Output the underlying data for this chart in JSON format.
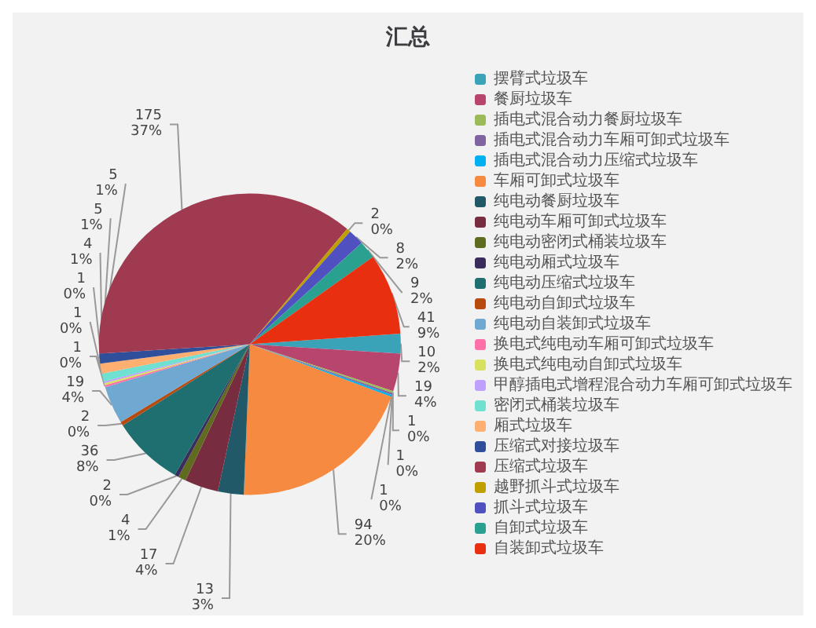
{
  "chart_data": {
    "type": "pie",
    "title": "汇总",
    "categories": [
      "摆臂式垃圾车",
      "餐厨垃圾车",
      "插电式混合动力餐厨垃圾车",
      "插电式混合动力车厢可卸式垃圾车",
      "插电式混合动力压缩式垃圾车",
      "车厢可卸式垃圾车",
      "纯电动餐厨垃圾车",
      "纯电动车厢可卸式垃圾车",
      "纯电动密闭式桶装垃圾车",
      "纯电动厢式垃圾车",
      "纯电动压缩式垃圾车",
      "纯电动自卸式垃圾车",
      "纯电动自装卸式垃圾车",
      "换电式纯电动车厢可卸式垃圾车",
      "换电式纯电动自卸式垃圾车",
      "甲醇插电式增程混合动力车厢可卸式垃圾车",
      "密闭式桶装垃圾车",
      "厢式垃圾车",
      "压缩式对接垃圾车",
      "压缩式垃圾车",
      "越野抓斗式垃圾车",
      "抓斗式垃圾车",
      "自卸式垃圾车",
      "自装卸式垃圾车"
    ],
    "values": [
      10,
      19,
      1,
      1,
      1,
      94,
      13,
      17,
      4,
      2,
      36,
      2,
      19,
      1,
      1,
      1,
      4,
      5,
      5,
      175,
      2,
      8,
      9,
      41
    ],
    "value_labels": [
      "10\n2%",
      "19\n4%",
      "1\n0%",
      "1\n0%",
      "1\n0%",
      "94\n20%",
      "13\n3%",
      "17\n4%",
      "4\n1%",
      "2\n0%",
      "36\n8%",
      "2\n0%",
      "19\n4%",
      "1\n0%",
      "1\n0%",
      "1\n0%",
      "4\n1%",
      "5\n1%",
      "5\n1%",
      "175\n37%",
      "2\n0%",
      "8\n2%",
      "9\n2%",
      "41\n9%"
    ],
    "colors": [
      "#3aa3b8",
      "#b8456e",
      "#9bbb59",
      "#8064a2",
      "#00b0f0",
      "#f58a40",
      "#215968",
      "#772c3f",
      "#5f6b1f",
      "#3b2c5e",
      "#1f6f70",
      "#b84a0e",
      "#6fa8d0",
      "#ff6fa8",
      "#d8e060",
      "#c0a0ff",
      "#70e0d0",
      "#ffb070",
      "#2f4f9a",
      "#a03a50",
      "#c0a000",
      "#5050c0",
      "#2aa090",
      "#e83010"
    ],
    "legend": "right"
  }
}
